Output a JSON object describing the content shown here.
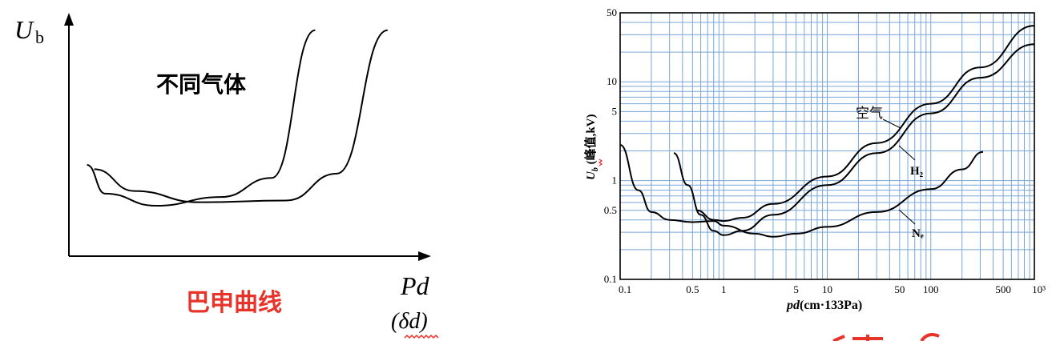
{
  "left_chart": {
    "ylabel_main": "U",
    "ylabel_sub": "b",
    "annotation": "不同气体",
    "caption": "巴申曲线",
    "xlabel": "Pd",
    "xlabel_alt": "(δd)",
    "colors": {
      "axis": "#000000",
      "caption": "#e8332a"
    }
  },
  "chart_data": [
    {
      "type": "line",
      "title": "",
      "xlabel": "Pd",
      "ylabel": "U_b",
      "annotation": "不同气体",
      "note": "Schematic Paschen curves; axes unscaled (no tick values shown).",
      "series": [
        {
          "values": [
            [
              0.25,
              1.05
            ],
            [
              0.5,
              0.72
            ],
            [
              1.2,
              0.58
            ],
            [
              2.1,
              0.68
            ],
            [
              2.8,
              0.9
            ],
            [
              3.4,
              2.6
            ]
          ]
        },
        {
          "values": [
            [
              0.35,
              1.0
            ],
            [
              0.9,
              0.75
            ],
            [
              1.8,
              0.62
            ],
            [
              3.0,
              0.64
            ],
            [
              3.7,
              0.95
            ],
            [
              4.4,
              2.6
            ]
          ]
        }
      ]
    },
    {
      "type": "line",
      "title": "",
      "xlabel": "pd(cm·133Pa)",
      "ylabel": "U_b (峰值,kV)",
      "xscale": "log",
      "yscale": "log",
      "xlim": [
        0.1,
        1000
      ],
      "ylim": [
        0.1,
        50
      ],
      "grid": true,
      "x_ticks": [
        "0.1",
        "0.5",
        "1",
        "5",
        "10",
        "50",
        "100",
        "500",
        "10³"
      ],
      "y_ticks": [
        "0.1",
        "0.5",
        "1",
        "5",
        "10",
        "50"
      ],
      "series": [
        {
          "name": "空气",
          "values": [
            [
              0.55,
              0.5
            ],
            [
              0.8,
              0.4
            ],
            [
              1.0,
              0.39
            ],
            [
              1.5,
              0.42
            ],
            [
              3,
              0.58
            ],
            [
              10,
              1.1
            ],
            [
              30,
              2.4
            ],
            [
              100,
              6
            ],
            [
              300,
              14
            ],
            [
              1000,
              37
            ]
          ]
        },
        {
          "name": "H₂",
          "values": [
            [
              0.33,
              1.9
            ],
            [
              0.45,
              0.9
            ],
            [
              0.6,
              0.45
            ],
            [
              0.8,
              0.31
            ],
            [
              1.0,
              0.28
            ],
            [
              1.5,
              0.31
            ],
            [
              3,
              0.45
            ],
            [
              10,
              0.9
            ],
            [
              30,
              1.9
            ],
            [
              100,
              4.8
            ],
            [
              300,
              11
            ],
            [
              1000,
              24
            ]
          ]
        },
        {
          "name": "Nₑ",
          "values": [
            [
              0.1,
              2.3
            ],
            [
              0.15,
              0.8
            ],
            [
              0.2,
              0.48
            ],
            [
              0.3,
              0.4
            ],
            [
              0.5,
              0.38
            ],
            [
              0.8,
              0.39
            ],
            [
              1,
              0.35
            ],
            [
              2,
              0.29
            ],
            [
              3,
              0.27
            ],
            [
              5,
              0.29
            ],
            [
              10,
              0.34
            ],
            [
              30,
              0.48
            ],
            [
              100,
              0.82
            ],
            [
              200,
              1.3
            ],
            [
              320,
              1.95
            ]
          ]
        }
      ]
    }
  ]
}
